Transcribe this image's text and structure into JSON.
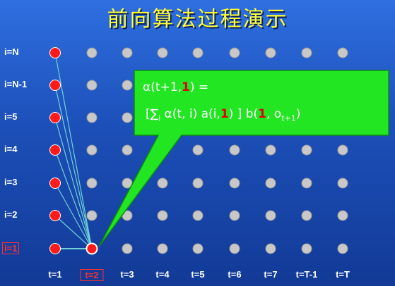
{
  "title": "前向算法过程演示",
  "rows": [
    {
      "label": "i=N",
      "highlight": false
    },
    {
      "label": "i=N-1",
      "highlight": false
    },
    {
      "label": "i=5",
      "highlight": false
    },
    {
      "label": "i=4",
      "highlight": false
    },
    {
      "label": "i=3",
      "highlight": false
    },
    {
      "label": "i=2",
      "highlight": false
    },
    {
      "label": "i=1",
      "highlight": true
    }
  ],
  "columns": [
    {
      "label": "t=1",
      "highlight": false
    },
    {
      "label": "t=2",
      "highlight": true
    },
    {
      "label": "t=3",
      "highlight": false
    },
    {
      "label": "t=4",
      "highlight": false
    },
    {
      "label": "t=5",
      "highlight": false
    },
    {
      "label": "t=6",
      "highlight": false
    },
    {
      "label": "t=7",
      "highlight": false
    },
    {
      "label": "t=T-1",
      "highlight": false
    },
    {
      "label": "t=T",
      "highlight": false
    }
  ],
  "callout": {
    "line1_prefix": "α(t+1,",
    "line1_index": "1",
    "line1_suffix": ") =",
    "line2_a": "[∑",
    "line2_sub_i": "i",
    "line2_b": " α(t, i) a(i,",
    "line2_index1": "1",
    "line2_c": ") ] b(",
    "line2_index2": "1",
    "line2_d": ", o",
    "line2_sub_t": "t+1",
    "line2_e": ")"
  },
  "colors": {
    "background": "#1c4fb8",
    "title": "#ffff33",
    "active_node": "#ff1a1a",
    "inactive_node": "#c8c8c8",
    "callout_fill": "#22e622",
    "connection_line": "#6fd3d8",
    "highlight_red": "#e00000"
  }
}
